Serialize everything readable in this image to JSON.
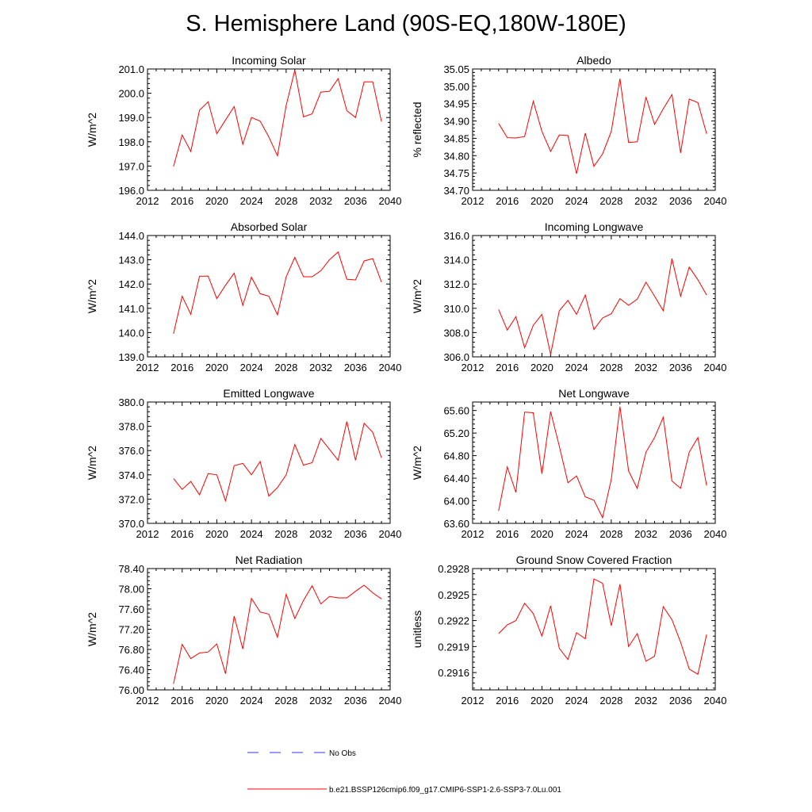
{
  "title": "S. Hemisphere Land (90S-EQ,180W-180E)",
  "colors": {
    "model": "#ff0000",
    "obs": "#3333ff"
  },
  "legend": {
    "obs_label": "No Obs",
    "model_label": "b.e21.BSSP126cmip6.f09_g17.CMIP6-SSP1-2.6-SSP3-7.0Lu.001"
  },
  "chart_data": [
    {
      "type": "line",
      "title": "Incoming Solar",
      "ylabel": "W/m^2",
      "xlim": [
        2012,
        2040
      ],
      "ylim": [
        196.0,
        201.0
      ],
      "xticks": [
        2012,
        2016,
        2020,
        2024,
        2028,
        2032,
        2036,
        2040
      ],
      "yticks": [
        "196.0",
        "197.0",
        "198.0",
        "199.0",
        "200.0",
        "201.0"
      ],
      "x": [
        2015,
        2016,
        2017,
        2018,
        2019,
        2020,
        2021,
        2022,
        2023,
        2024,
        2025,
        2026,
        2027,
        2028,
        2029,
        2030,
        2031,
        2032,
        2033,
        2034,
        2035,
        2036,
        2037,
        2038,
        2039
      ],
      "values": [
        196.98,
        198.28,
        197.6,
        199.3,
        199.65,
        198.33,
        198.9,
        199.45,
        197.9,
        199.0,
        198.85,
        198.2,
        197.42,
        199.5,
        200.95,
        199.03,
        199.15,
        200.05,
        200.08,
        200.6,
        199.28,
        199.0,
        200.47,
        200.47,
        198.83
      ]
    },
    {
      "type": "line",
      "title": "Albedo",
      "ylabel": "% reflected",
      "xlim": [
        2012,
        2040
      ],
      "ylim": [
        34.7,
        35.05
      ],
      "xticks": [
        2012,
        2016,
        2020,
        2024,
        2028,
        2032,
        2036,
        2040
      ],
      "yticks": [
        "34.70",
        "34.75",
        "34.80",
        "34.85",
        "34.90",
        "34.95",
        "35.00",
        "35.05"
      ],
      "x": [
        2015,
        2016,
        2017,
        2018,
        2019,
        2020,
        2021,
        2022,
        2023,
        2024,
        2025,
        2026,
        2027,
        2028,
        2029,
        2030,
        2031,
        2032,
        2033,
        2034,
        2035,
        2036,
        2037,
        2038,
        2039
      ],
      "values": [
        34.893,
        34.852,
        34.851,
        34.855,
        34.957,
        34.87,
        34.812,
        34.86,
        34.858,
        34.748,
        34.865,
        34.769,
        34.805,
        34.87,
        35.022,
        34.838,
        34.84,
        34.969,
        34.89,
        34.935,
        34.976,
        34.808,
        34.963,
        34.953,
        34.863
      ]
    },
    {
      "type": "line",
      "title": "Absorbed Solar",
      "ylabel": "W/m^2",
      "xlim": [
        2012,
        2040
      ],
      "ylim": [
        139.0,
        144.0
      ],
      "xticks": [
        2012,
        2016,
        2020,
        2024,
        2028,
        2032,
        2036,
        2040
      ],
      "yticks": [
        "139.0",
        "140.0",
        "141.0",
        "142.0",
        "143.0",
        "144.0"
      ],
      "x": [
        2015,
        2016,
        2017,
        2018,
        2019,
        2020,
        2021,
        2022,
        2023,
        2024,
        2025,
        2026,
        2027,
        2028,
        2029,
        2030,
        2031,
        2032,
        2033,
        2034,
        2035,
        2036,
        2037,
        2038,
        2039
      ],
      "values": [
        139.95,
        141.5,
        140.75,
        142.32,
        142.33,
        141.4,
        141.95,
        142.45,
        141.12,
        142.28,
        141.6,
        141.5,
        140.73,
        142.3,
        143.1,
        142.3,
        142.3,
        142.55,
        143.0,
        143.32,
        142.2,
        142.17,
        142.95,
        143.05,
        142.08
      ]
    },
    {
      "type": "line",
      "title": "Incoming Longwave",
      "ylabel": "W/m^2",
      "xlim": [
        2012,
        2040
      ],
      "ylim": [
        306.0,
        316.0
      ],
      "xticks": [
        2012,
        2016,
        2020,
        2024,
        2028,
        2032,
        2036,
        2040
      ],
      "yticks": [
        "306.0",
        "308.0",
        "310.0",
        "312.0",
        "314.0",
        "316.0"
      ],
      "x": [
        2015,
        2016,
        2017,
        2018,
        2019,
        2020,
        2021,
        2022,
        2023,
        2024,
        2025,
        2026,
        2027,
        2028,
        2029,
        2030,
        2031,
        2032,
        2033,
        2034,
        2035,
        2036,
        2037,
        2038,
        2039
      ],
      "values": [
        309.9,
        308.2,
        309.3,
        306.75,
        308.6,
        309.5,
        306.2,
        309.8,
        310.65,
        309.5,
        311.1,
        308.25,
        309.2,
        309.55,
        310.8,
        310.25,
        310.75,
        312.15,
        311.0,
        309.8,
        314.1,
        311.0,
        313.4,
        312.35,
        311.1
      ]
    },
    {
      "type": "line",
      "title": "Emitted Longwave",
      "ylabel": "W/m^2",
      "xlim": [
        2012,
        2040
      ],
      "ylim": [
        370.0,
        380.0
      ],
      "xticks": [
        2012,
        2016,
        2020,
        2024,
        2028,
        2032,
        2036,
        2040
      ],
      "yticks": [
        "370.0",
        "372.0",
        "374.0",
        "376.0",
        "378.0",
        "380.0"
      ],
      "x": [
        2015,
        2016,
        2017,
        2018,
        2019,
        2020,
        2021,
        2022,
        2023,
        2024,
        2025,
        2026,
        2027,
        2028,
        2029,
        2030,
        2031,
        2032,
        2033,
        2034,
        2035,
        2036,
        2037,
        2038,
        2039
      ],
      "values": [
        373.7,
        372.8,
        373.45,
        372.35,
        374.1,
        374.0,
        371.85,
        374.75,
        374.95,
        374.0,
        375.1,
        372.25,
        372.95,
        374.0,
        376.5,
        374.8,
        375.0,
        377.0,
        376.1,
        375.2,
        378.4,
        375.2,
        378.25,
        377.5,
        375.4
      ]
    },
    {
      "type": "line",
      "title": "Net Longwave",
      "ylabel": "W/m^2",
      "xlim": [
        2012,
        2040
      ],
      "ylim": [
        63.6,
        65.75
      ],
      "xticks": [
        2012,
        2016,
        2020,
        2024,
        2028,
        2032,
        2036,
        2040
      ],
      "yticks": [
        "63.60",
        "64.00",
        "64.40",
        "64.80",
        "65.20",
        "65.60"
      ],
      "x": [
        2015,
        2016,
        2017,
        2018,
        2019,
        2020,
        2021,
        2022,
        2023,
        2024,
        2025,
        2026,
        2027,
        2028,
        2029,
        2030,
        2031,
        2032,
        2033,
        2034,
        2035,
        2036,
        2037,
        2038,
        2039
      ],
      "values": [
        63.82,
        64.6,
        64.15,
        65.57,
        65.56,
        64.48,
        65.58,
        64.97,
        64.32,
        64.44,
        64.07,
        64.01,
        63.7,
        64.38,
        65.67,
        64.53,
        64.22,
        64.86,
        65.12,
        65.48,
        64.35,
        64.22,
        64.86,
        65.12,
        64.27
      ]
    },
    {
      "type": "line",
      "title": "Net Radiation",
      "ylabel": "W/m^2",
      "xlim": [
        2012,
        2040
      ],
      "ylim": [
        76.0,
        78.4
      ],
      "xticks": [
        2012,
        2016,
        2020,
        2024,
        2028,
        2032,
        2036,
        2040
      ],
      "yticks": [
        "76.00",
        "76.40",
        "76.80",
        "77.20",
        "77.60",
        "78.00",
        "78.40"
      ],
      "x": [
        2015,
        2016,
        2017,
        2018,
        2019,
        2020,
        2021,
        2022,
        2023,
        2024,
        2025,
        2026,
        2027,
        2028,
        2029,
        2030,
        2031,
        2032,
        2033,
        2034,
        2035,
        2036,
        2037,
        2038,
        2039
      ],
      "values": [
        76.12,
        76.9,
        76.62,
        76.73,
        76.75,
        76.91,
        76.32,
        77.46,
        76.81,
        77.81,
        77.54,
        77.5,
        77.04,
        77.89,
        77.41,
        77.77,
        78.06,
        77.7,
        77.85,
        77.82,
        77.82,
        77.95,
        78.07,
        77.92,
        77.8
      ]
    },
    {
      "type": "line",
      "title": "Ground Snow Covered Fraction",
      "ylabel": "unitless",
      "xlim": [
        2012,
        2040
      ],
      "ylim": [
        0.2914,
        0.2928
      ],
      "xticks": [
        2012,
        2016,
        2020,
        2024,
        2028,
        2032,
        2036,
        2040
      ],
      "yticks": [
        "0.2916",
        "0.2919",
        "0.2922",
        "0.2925",
        "0.2928"
      ],
      "x": [
        2015,
        2016,
        2017,
        2018,
        2019,
        2020,
        2021,
        2022,
        2023,
        2024,
        2025,
        2026,
        2027,
        2028,
        2029,
        2030,
        2031,
        2032,
        2033,
        2034,
        2035,
        2036,
        2037,
        2038,
        2039
      ],
      "values": [
        0.29205,
        0.29215,
        0.2922,
        0.2924,
        0.29228,
        0.29202,
        0.29237,
        0.29188,
        0.29175,
        0.29206,
        0.29199,
        0.29268,
        0.29263,
        0.29214,
        0.29262,
        0.2919,
        0.29205,
        0.29173,
        0.29179,
        0.29236,
        0.29221,
        0.29195,
        0.29164,
        0.29158,
        0.29204
      ]
    }
  ]
}
